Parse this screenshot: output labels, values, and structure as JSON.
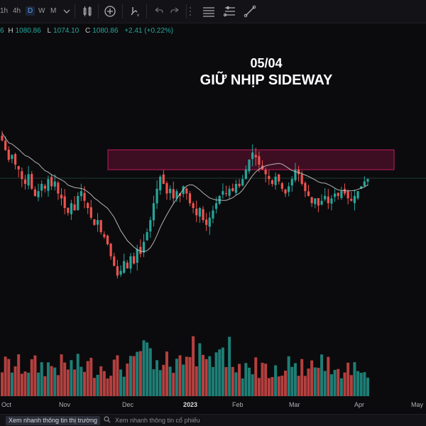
{
  "toolbar": {
    "timeframes": [
      "1h",
      "4h",
      "D",
      "W",
      "M"
    ],
    "active_timeframe": "D",
    "icons": [
      "chevron-down-icon",
      "candlestick-type-icon",
      "add-indicator-icon",
      "replay-icon",
      "undo-icon",
      "redo-icon",
      "layout-grid-icon",
      "horizontal-lines-icon",
      "fib-tool-icon",
      "trend-line-icon"
    ]
  },
  "ohlc": {
    "open_value": "6",
    "high_label": "H",
    "high_value": "1080.86",
    "low_label": "L",
    "low_value": "1074.10",
    "close_label": "C",
    "close_value": "1080.86",
    "change": "+2.41 (+0.22%)"
  },
  "headline": {
    "date": "05/04",
    "title": "GIỮ NHỊP SIDEWAY"
  },
  "colors": {
    "up": "#26a69a",
    "down": "#ef5350",
    "zone": "#c2185b",
    "ma": "#d0d0d0"
  },
  "x_axis": {
    "labels": [
      "Oct",
      "Nov",
      "Dec",
      "2023",
      "Feb",
      "Mar",
      "Apr",
      "May"
    ],
    "bold_label": "2023"
  },
  "chart_data": {
    "type": "candlestick",
    "x_axis_labels": [
      "Oct",
      "Nov",
      "Dec",
      "2023",
      "Feb",
      "Mar",
      "Apr",
      "May"
    ],
    "resistance_zone": "highlighted box near the January–February highs",
    "overlay": "moving average line",
    "volume_panel": true,
    "trend_closes_relative": [
      0.78,
      0.74,
      0.7,
      0.72,
      0.68,
      0.66,
      0.62,
      0.6,
      0.64,
      0.58,
      0.55,
      0.57,
      0.6,
      0.58,
      0.62,
      0.59,
      0.61,
      0.56,
      0.54,
      0.5,
      0.48,
      0.52,
      0.49,
      0.55,
      0.57,
      0.53,
      0.5,
      0.46,
      0.43,
      0.45,
      0.4,
      0.38,
      0.35,
      0.3,
      0.26,
      0.22,
      0.24,
      0.28,
      0.25,
      0.3,
      0.27,
      0.33,
      0.31,
      0.36,
      0.4,
      0.45,
      0.52,
      0.58,
      0.63,
      0.6,
      0.56,
      0.58,
      0.54,
      0.57,
      0.55,
      0.59,
      0.56,
      0.52,
      0.5,
      0.47,
      0.5,
      0.45,
      0.43,
      0.46,
      0.49,
      0.52,
      0.55,
      0.57,
      0.56,
      0.58,
      0.57,
      0.6,
      0.59,
      0.62,
      0.66,
      0.7,
      0.73,
      0.71,
      0.68,
      0.66,
      0.64,
      0.62,
      0.6,
      0.63,
      0.61,
      0.58,
      0.56,
      0.59,
      0.62,
      0.66,
      0.64,
      0.6,
      0.57,
      0.55,
      0.52,
      0.54,
      0.51,
      0.53,
      0.55,
      0.52,
      0.54,
      0.56,
      0.55,
      0.57,
      0.56,
      0.54,
      0.53,
      0.55,
      0.57,
      0.59,
      0.61,
      0.62
    ]
  },
  "bottom_bar": {
    "tab_market": "Xem nhanh thông tin thị trường",
    "tab_stock": "Xem nhanh thông tin cổ phiếu"
  }
}
